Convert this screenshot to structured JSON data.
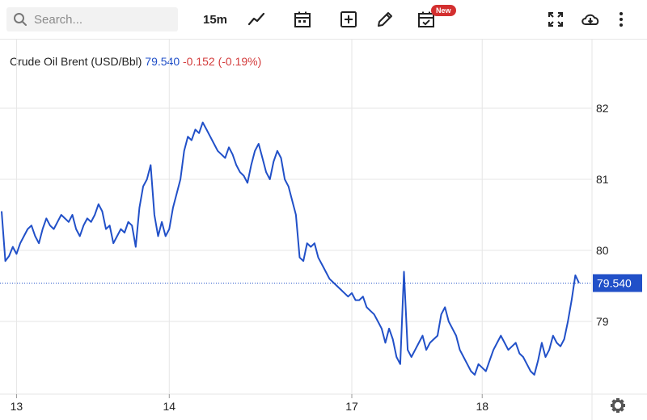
{
  "toolbar": {
    "search_placeholder": "Search...",
    "interval_label": "15m",
    "new_badge": "New",
    "icons": [
      "search-icon",
      "line-chart-icon",
      "calendar-icon",
      "plus-box-icon",
      "pencil-icon",
      "calendar-check-icon",
      "fullscreen-icon",
      "cloud-download-icon",
      "more-vertical-icon"
    ]
  },
  "legend": {
    "name": "Crude Oil Brent (USD/Bbl)",
    "price": "79.540",
    "change": "-0.152 (-0.19%)"
  },
  "colors": {
    "line": "#2150c8",
    "change_negative": "#d33b3b",
    "grid": "#e6e6e6",
    "price_tag": "#2150c8"
  },
  "chart_data": {
    "type": "line",
    "title": "Crude Oil Brent (USD/Bbl)",
    "xlabel": "",
    "ylabel": "",
    "x_ticks": [
      {
        "label": "13",
        "index": 4
      },
      {
        "label": "14",
        "index": 45
      },
      {
        "label": "17",
        "index": 94
      },
      {
        "label": "18",
        "index": 129
      }
    ],
    "y_ticks": [
      79,
      80,
      81,
      82
    ],
    "ylim": [
      78.0,
      82.5
    ],
    "current_price": 79.54,
    "current_price_label": "79.540",
    "grid": true,
    "series": [
      {
        "values": [
          80.55,
          79.85,
          79.92,
          80.05,
          79.95,
          80.1,
          80.2,
          80.3,
          80.35,
          80.2,
          80.1,
          80.3,
          80.45,
          80.35,
          80.3,
          80.4,
          80.5,
          80.45,
          80.4,
          80.5,
          80.3,
          80.2,
          80.35,
          80.45,
          80.4,
          80.5,
          80.65,
          80.55,
          80.3,
          80.35,
          80.1,
          80.2,
          80.3,
          80.25,
          80.4,
          80.35,
          80.05,
          80.6,
          80.9,
          81.0,
          81.2,
          80.5,
          80.2,
          80.4,
          80.2,
          80.3,
          80.6,
          80.8,
          81.0,
          81.4,
          81.6,
          81.55,
          81.7,
          81.65,
          81.8,
          81.7,
          81.6,
          81.5,
          81.4,
          81.35,
          81.3,
          81.45,
          81.35,
          81.2,
          81.1,
          81.05,
          80.95,
          81.2,
          81.4,
          81.5,
          81.3,
          81.1,
          81.0,
          81.25,
          81.4,
          81.3,
          81.0,
          80.9,
          80.7,
          80.5,
          79.9,
          79.85,
          80.1,
          80.05,
          80.1,
          79.9,
          79.8,
          79.7,
          79.6,
          79.55,
          79.5,
          79.45,
          79.4,
          79.35,
          79.4,
          79.3,
          79.3,
          79.35,
          79.2,
          79.15,
          79.1,
          79.0,
          78.9,
          78.7,
          78.9,
          78.75,
          78.5,
          78.4,
          79.7,
          78.6,
          78.5,
          78.6,
          78.7,
          78.8,
          78.6,
          78.7,
          78.75,
          78.8,
          79.1,
          79.2,
          79.0,
          78.9,
          78.8,
          78.6,
          78.5,
          78.4,
          78.3,
          78.25,
          78.4,
          78.35,
          78.3,
          78.45,
          78.6,
          78.7,
          78.8,
          78.7,
          78.6,
          78.65,
          78.7,
          78.55,
          78.5,
          78.4,
          78.3,
          78.25,
          78.45,
          78.7,
          78.5,
          78.6,
          78.8,
          78.7,
          78.65,
          78.75,
          79.0,
          79.3,
          79.65,
          79.54
        ]
      }
    ]
  }
}
